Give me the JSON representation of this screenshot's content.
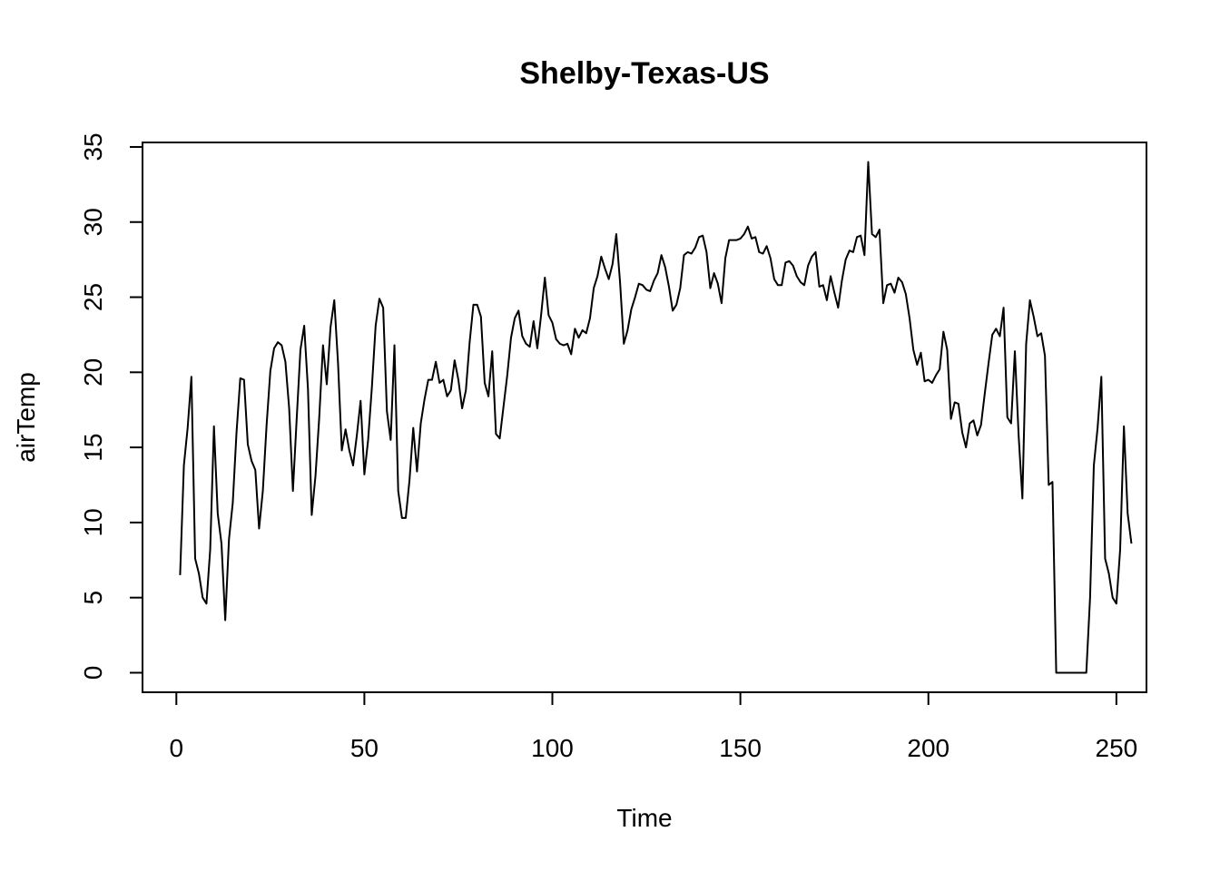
{
  "chart_data": {
    "type": "line",
    "title": "Shelby-Texas-US",
    "xlabel": "Time",
    "ylabel": "airTemp",
    "xlim": [
      -9.0,
      258.0
    ],
    "ylim": [
      -1.3,
      35.3
    ],
    "x_ticks": [
      0,
      50,
      100,
      150,
      200,
      250
    ],
    "y_ticks": [
      0,
      5,
      10,
      15,
      20,
      25,
      30,
      35
    ],
    "grid": false,
    "legend": "none",
    "line_color": "#000000",
    "series": [
      {
        "x_start": 1,
        "values": [
          6.5,
          13.8,
          16.3,
          19.7,
          7.6,
          6.6,
          5.0,
          4.6,
          8.2,
          16.4,
          10.6,
          8.6,
          3.5,
          8.9,
          11.3,
          16.0,
          19.6,
          19.5,
          15.2,
          14.1,
          13.5,
          9.6,
          12.1,
          16.5,
          20.1,
          21.6,
          22.0,
          21.8,
          20.7,
          17.6,
          12.1,
          16.9,
          21.5,
          23.1,
          18.9,
          10.5,
          13.1,
          17.0,
          21.8,
          19.2,
          23.0,
          24.8,
          20.6,
          14.8,
          16.2,
          14.8,
          13.8,
          15.8,
          18.1,
          13.2,
          15.5,
          19.0,
          23.1,
          24.9,
          24.3,
          17.4,
          15.5,
          21.8,
          12.1,
          10.3,
          10.3,
          12.8,
          16.3,
          13.4,
          16.6,
          18.2,
          19.5,
          19.5,
          20.7,
          19.3,
          19.5,
          18.4,
          18.8,
          20.8,
          19.5,
          17.6,
          18.8,
          22.0,
          24.5,
          24.5,
          23.7,
          19.3,
          18.4,
          21.4,
          15.9,
          15.6,
          17.7,
          19.8,
          22.3,
          23.6,
          24.1,
          22.4,
          21.9,
          21.7,
          23.4,
          21.6,
          23.8,
          26.3,
          23.8,
          23.3,
          22.2,
          21.9,
          21.8,
          21.9,
          21.2,
          22.9,
          22.3,
          22.8,
          22.6,
          23.6,
          25.6,
          26.4,
          27.7,
          26.9,
          26.2,
          27.2,
          29.2,
          26.0,
          21.9,
          22.8,
          24.2,
          25.0,
          25.9,
          25.8,
          25.5,
          25.4,
          26.1,
          26.6,
          27.8,
          27.0,
          25.7,
          24.1,
          24.5,
          25.6,
          27.8,
          28.0,
          27.9,
          28.3,
          29.0,
          29.1,
          28.0,
          25.6,
          26.6,
          25.9,
          24.6,
          27.6,
          28.8,
          28.8,
          28.8,
          28.9,
          29.2,
          29.7,
          28.9,
          29.0,
          28.0,
          27.9,
          28.4,
          27.6,
          26.2,
          25.8,
          25.8,
          27.3,
          27.4,
          27.1,
          26.4,
          26.0,
          25.8,
          27.1,
          27.7,
          28.0,
          25.7,
          25.8,
          24.8,
          26.4,
          25.3,
          24.3,
          26.1,
          27.5,
          28.1,
          28.0,
          29.0,
          29.1,
          27.8,
          34.0,
          29.2,
          29.0,
          29.5,
          24.6,
          25.8,
          25.9,
          25.3,
          26.3,
          26.0,
          25.2,
          23.6,
          21.5,
          20.5,
          21.3,
          19.4,
          19.5,
          19.3,
          19.8,
          20.2,
          22.7,
          21.5,
          16.9,
          18.0,
          17.9,
          16.0,
          15.0,
          16.6,
          16.8,
          15.8,
          16.5,
          18.6,
          20.6,
          22.5,
          22.9,
          22.4,
          24.3,
          17.0,
          16.6,
          21.4,
          15.8,
          11.6,
          21.9,
          24.8,
          23.7,
          22.4,
          22.6,
          21.1,
          12.5,
          12.7,
          0.0,
          0.0,
          0.0,
          0.0,
          0.0,
          0.0,
          0.0,
          0.0,
          0.0,
          5.0,
          13.8,
          16.3,
          19.7,
          7.6,
          6.6,
          5.0,
          4.6,
          8.2,
          16.4,
          10.6,
          8.6
        ]
      }
    ]
  }
}
